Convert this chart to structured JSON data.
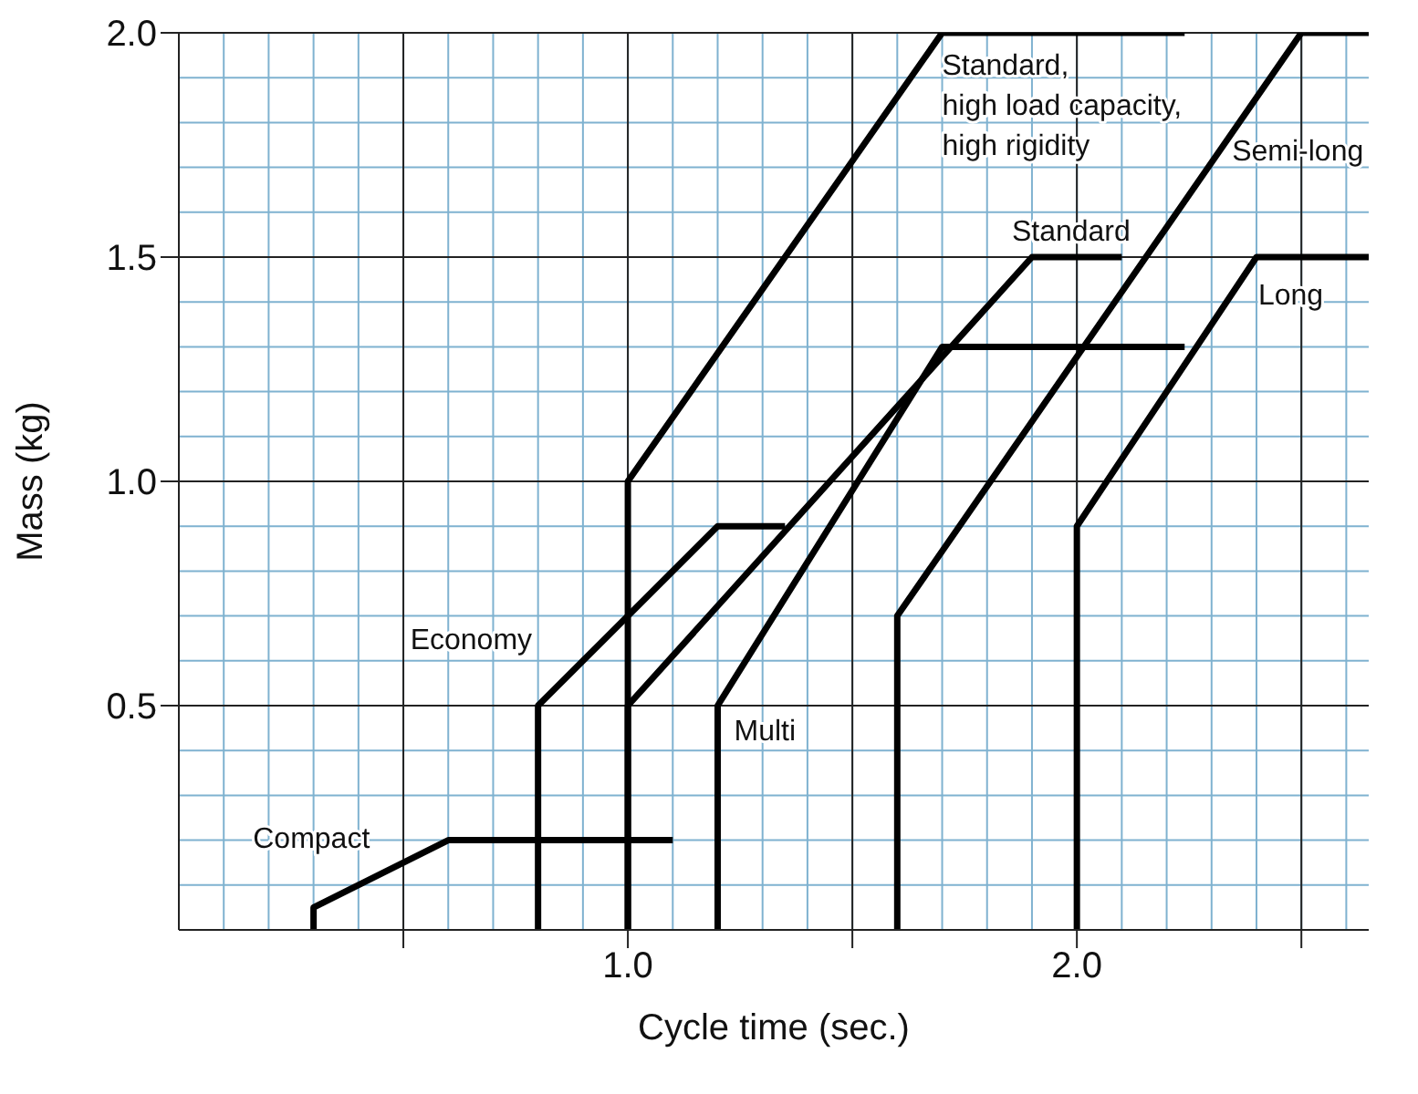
{
  "chart_data": {
    "type": "line",
    "xlabel": "Cycle time (sec.)",
    "ylabel": "Mass (kg)",
    "xlim": [
      0,
      2.65
    ],
    "ylim": [
      0,
      2
    ],
    "xticks": [
      {
        "value": 0.5,
        "label": null
      },
      {
        "value": 1,
        "label": "1.0"
      },
      {
        "value": 1.5,
        "label": null
      },
      {
        "value": 2,
        "label": "2.0"
      },
      {
        "value": 2.5,
        "label": null
      }
    ],
    "yticks": [
      0.5,
      {
        "value": 1,
        "label": "1.0"
      },
      1.5,
      {
        "value": 2,
        "label": "2.0"
      }
    ],
    "grid": true,
    "line_style": "solid",
    "series": [
      {
        "name": "Compact",
        "color": "#000000",
        "x": [
          0.3,
          0.3,
          0.6,
          1.1
        ],
        "values": [
          0,
          0.05,
          0.2,
          0.2
        ]
      },
      {
        "name": "Economy",
        "color": "#000000",
        "x": [
          0.8,
          0.8,
          1.2,
          1.35
        ],
        "values": [
          0,
          0.5,
          0.9,
          0.9
        ]
      },
      {
        "name": "Standard",
        "color": "#000000",
        "x": [
          1.0,
          1.0,
          1.9,
          2.1
        ],
        "values": [
          0,
          0.5,
          1.5,
          1.5
        ]
      },
      {
        "name": "Standard,\nhigh load capacity,\nhigh rigidity",
        "color": "#000000",
        "x": [
          1.0,
          1.0,
          1.7,
          2.24
        ],
        "values": [
          0,
          1.0,
          2.0,
          2.0
        ]
      },
      {
        "name": "Multi",
        "color": "#000000",
        "x": [
          1.2,
          1.2,
          1.7,
          2.24
        ],
        "values": [
          0,
          0.5,
          1.3,
          1.3
        ]
      },
      {
        "name": "Semi-long",
        "color": "#000000",
        "x": [
          1.6,
          1.6,
          2.5,
          2.65
        ],
        "values": [
          0,
          0.7,
          2.0,
          2.0
        ]
      },
      {
        "name": "Long",
        "color": "#000000",
        "x": [
          2.0,
          2.0,
          2.4,
          2.65
        ],
        "values": [
          0,
          0.9,
          1.5,
          1.5
        ]
      }
    ]
  }
}
